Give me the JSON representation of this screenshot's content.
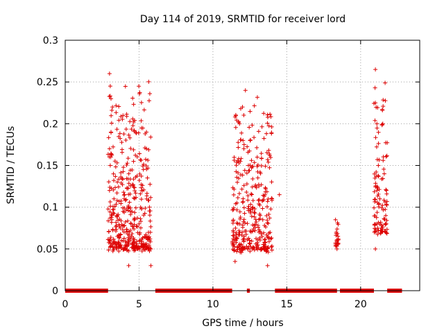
{
  "chart_data": {
    "type": "scatter",
    "title": "Day 114 of 2019, SRMTID for receiver lord",
    "xlabel": "GPS time / hours",
    "ylabel": "SRMTID / TECUs",
    "xlim": [
      0,
      24
    ],
    "ylim": [
      0,
      0.3
    ],
    "x_ticks": [
      0,
      5,
      10,
      15,
      20
    ],
    "x_tick_labels": [
      "0",
      "5",
      "10",
      "15",
      "20"
    ],
    "y_ticks": [
      0,
      0.05,
      0.1,
      0.15,
      0.2,
      0.25,
      0.3
    ],
    "y_tick_labels": [
      "0",
      "0.05",
      "0.1",
      "0.15",
      "0.2",
      "0.25",
      "0.3"
    ],
    "grid": true,
    "marker": "+",
    "colors": {
      "series": "#dd0000"
    },
    "clusters": [
      {
        "x_range": [
          2.9,
          5.8
        ],
        "y_range": [
          0.03,
          0.26
        ],
        "count": 420
      },
      {
        "x_range": [
          11.3,
          14.0
        ],
        "y_range": [
          0.03,
          0.24
        ],
        "count": 330
      },
      {
        "x_range": [
          18.3,
          18.5
        ],
        "y_range": [
          0.05,
          0.09
        ],
        "count": 20
      },
      {
        "x_range": [
          20.9,
          21.8
        ],
        "y_range": [
          0.05,
          0.27
        ],
        "count": 110
      }
    ],
    "sample_points": [
      [
        3.0,
        0.26
      ],
      [
        3.05,
        0.245
      ],
      [
        3.1,
        0.23
      ],
      [
        3.1,
        0.19
      ],
      [
        3.2,
        0.22
      ],
      [
        3.0,
        0.17
      ],
      [
        3.05,
        0.15
      ],
      [
        3.0,
        0.12
      ],
      [
        3.3,
        0.11
      ],
      [
        3.5,
        0.09
      ],
      [
        3.8,
        0.06
      ],
      [
        4.0,
        0.05
      ],
      [
        4.3,
        0.03
      ],
      [
        4.5,
        0.065
      ],
      [
        5.0,
        0.08
      ],
      [
        5.2,
        0.12
      ],
      [
        5.5,
        0.19
      ],
      [
        5.5,
        0.17
      ],
      [
        5.7,
        0.1
      ],
      [
        5.8,
        0.05
      ],
      [
        5.8,
        0.03
      ],
      [
        11.5,
        0.035
      ],
      [
        11.8,
        0.2
      ],
      [
        12.0,
        0.22
      ],
      [
        12.2,
        0.24
      ],
      [
        12.4,
        0.15
      ],
      [
        12.7,
        0.1
      ],
      [
        13.0,
        0.16
      ],
      [
        13.2,
        0.09
      ],
      [
        13.5,
        0.05
      ],
      [
        13.7,
        0.03
      ],
      [
        14.0,
        0.11
      ],
      [
        14.5,
        0.115
      ],
      [
        18.3,
        0.085
      ],
      [
        18.35,
        0.07
      ],
      [
        18.4,
        0.05
      ],
      [
        21.0,
        0.265
      ],
      [
        21.0,
        0.225
      ],
      [
        21.1,
        0.2
      ],
      [
        21.2,
        0.15
      ],
      [
        21.3,
        0.11
      ],
      [
        21.5,
        0.2
      ],
      [
        21.6,
        0.14
      ],
      [
        21.7,
        0.09
      ],
      [
        21.1,
        0.08
      ],
      [
        21.0,
        0.05
      ]
    ],
    "zero_segments": [
      [
        0.0,
        2.9
      ],
      [
        6.1,
        11.3
      ],
      [
        12.3,
        12.5
      ],
      [
        14.2,
        18.4
      ],
      [
        18.6,
        20.9
      ],
      [
        21.8,
        22.8
      ]
    ]
  }
}
